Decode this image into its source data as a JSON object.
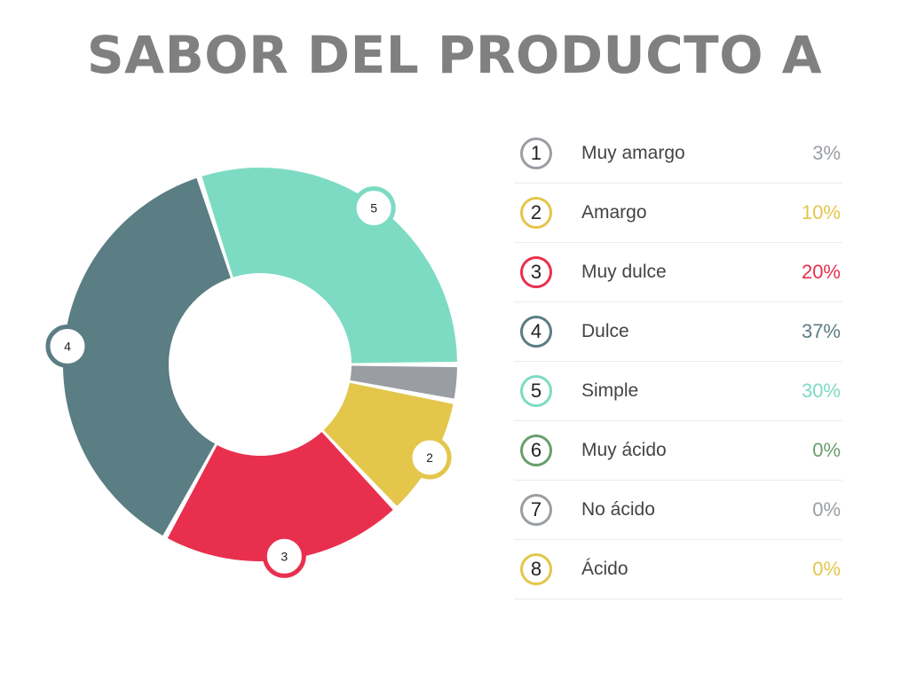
{
  "title": "SABOR DEL PRODUCTO A",
  "chart_data": {
    "type": "pie",
    "title": "SABOR DEL PRODUCTO A",
    "categories": [
      "Muy amargo",
      "Amargo",
      "Muy dulce",
      "Dulce",
      "Simple",
      "Muy ácido",
      "No ácido",
      "Ácido"
    ],
    "numbers": [
      "1",
      "2",
      "3",
      "4",
      "5",
      "6",
      "7",
      "8"
    ],
    "values": [
      3,
      10,
      20,
      37,
      30,
      0,
      0,
      0
    ],
    "value_labels": [
      "3%",
      "10%",
      "20%",
      "37%",
      "30%",
      "0%",
      "0%",
      "0%"
    ],
    "colors": [
      "#9a9ea3",
      "#e4c64b",
      "#e8304e",
      "#5b7d84",
      "#7ddbc3",
      "#6a9e6e",
      "#9a9ea3",
      "#e4c64b"
    ],
    "slice_badges": [
      "2",
      "3",
      "4",
      "5"
    ],
    "legend": "right"
  }
}
